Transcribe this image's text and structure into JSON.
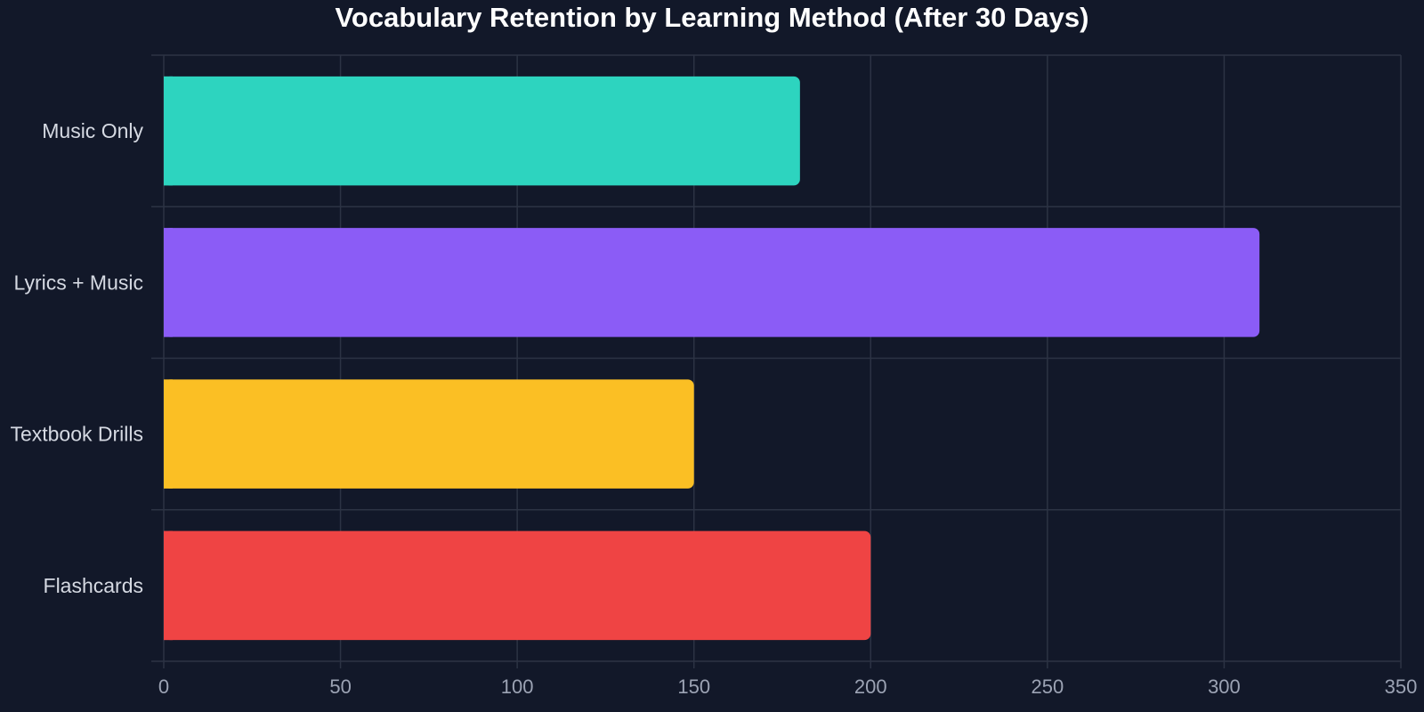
{
  "chart_data": {
    "type": "bar",
    "orientation": "horizontal",
    "title": "Vocabulary Retention by Learning Method (After 30 Days)",
    "categories": [
      "Music Only",
      "Lyrics + Music",
      "Textbook Drills",
      "Flashcards"
    ],
    "values": [
      180,
      310,
      150,
      200
    ],
    "colors": [
      "#2dd4bf",
      "#8b5cf6",
      "#fbbf24",
      "#ef4444"
    ],
    "xlim": [
      0,
      350
    ],
    "xticks": [
      0,
      50,
      100,
      150,
      200,
      250,
      300,
      350
    ],
    "grid": true,
    "xlabel": "",
    "ylabel": ""
  }
}
